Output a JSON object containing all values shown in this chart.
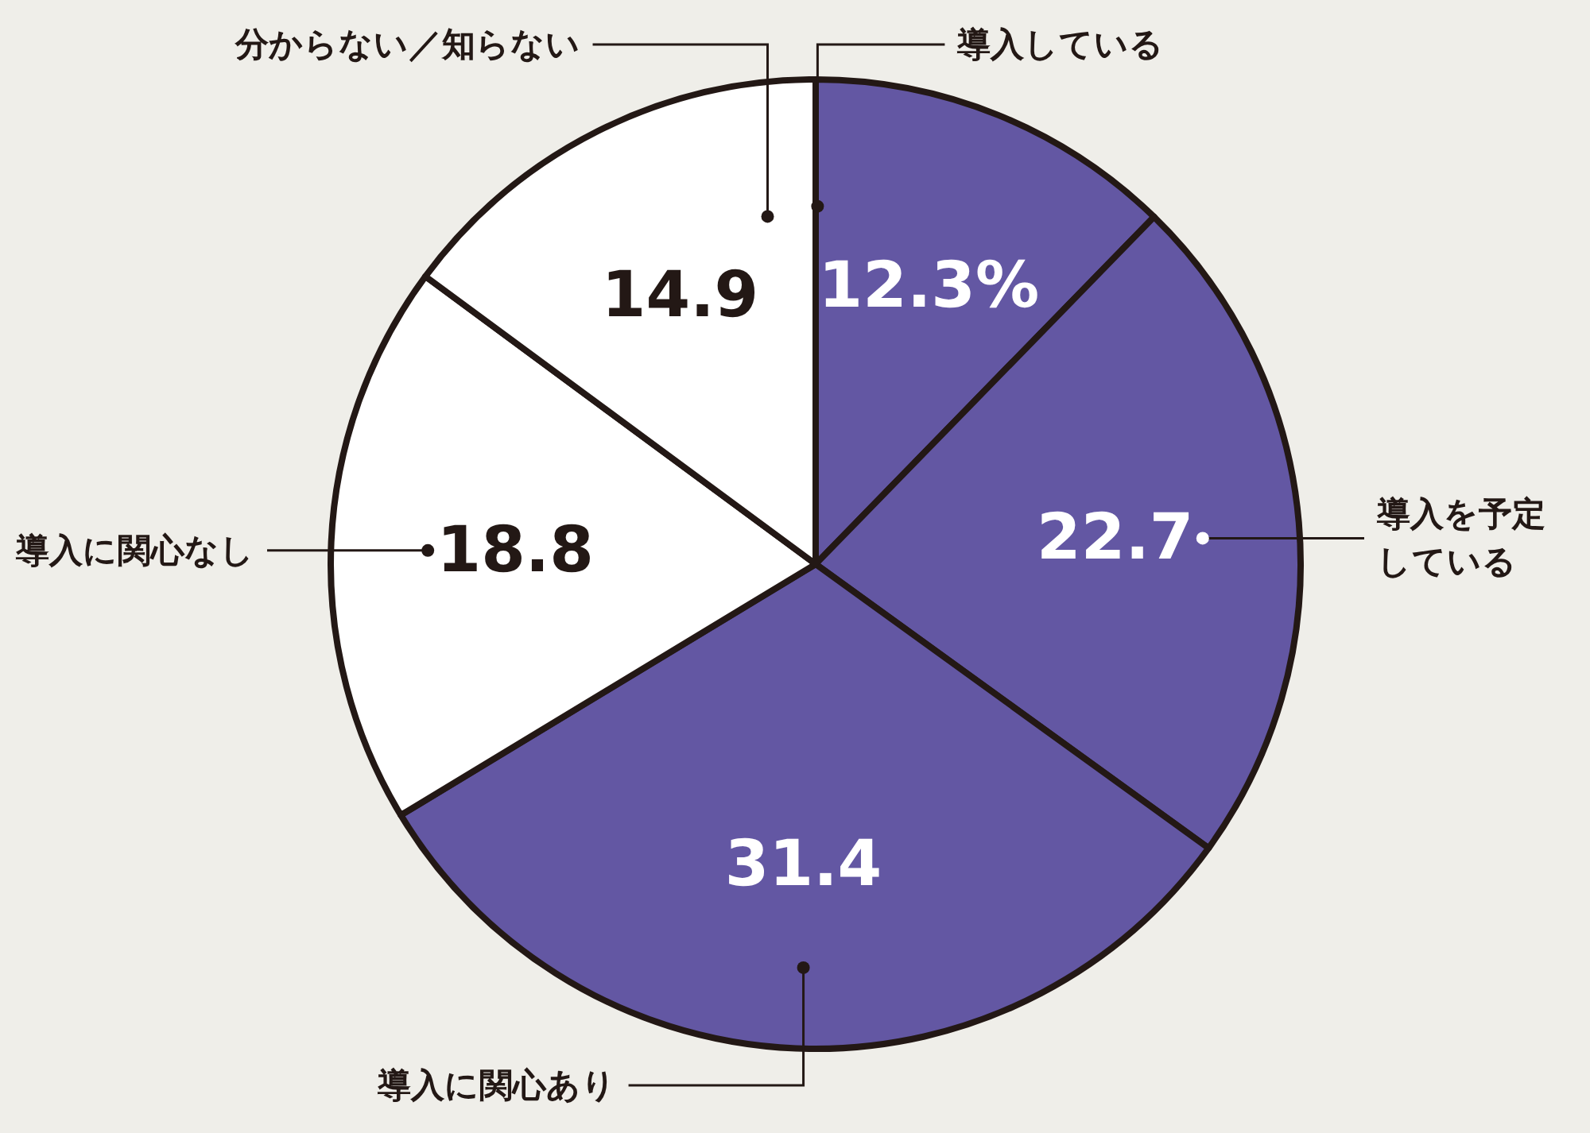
{
  "chart_data": {
    "type": "pie",
    "categories": [
      "導入している",
      "導入を予定している",
      "導入に関心あり",
      "導入に関心なし",
      "分からない／知らない"
    ],
    "values": [
      12.3,
      22.7,
      31.4,
      18.8,
      14.9
    ],
    "colors": [
      "#6357a3",
      "#6357a3",
      "#6357a3",
      "#ffffff",
      "#ffffff"
    ],
    "value_labels": [
      "12.3%",
      "22.7",
      "31.4",
      "18.8",
      "14.9"
    ]
  }
}
